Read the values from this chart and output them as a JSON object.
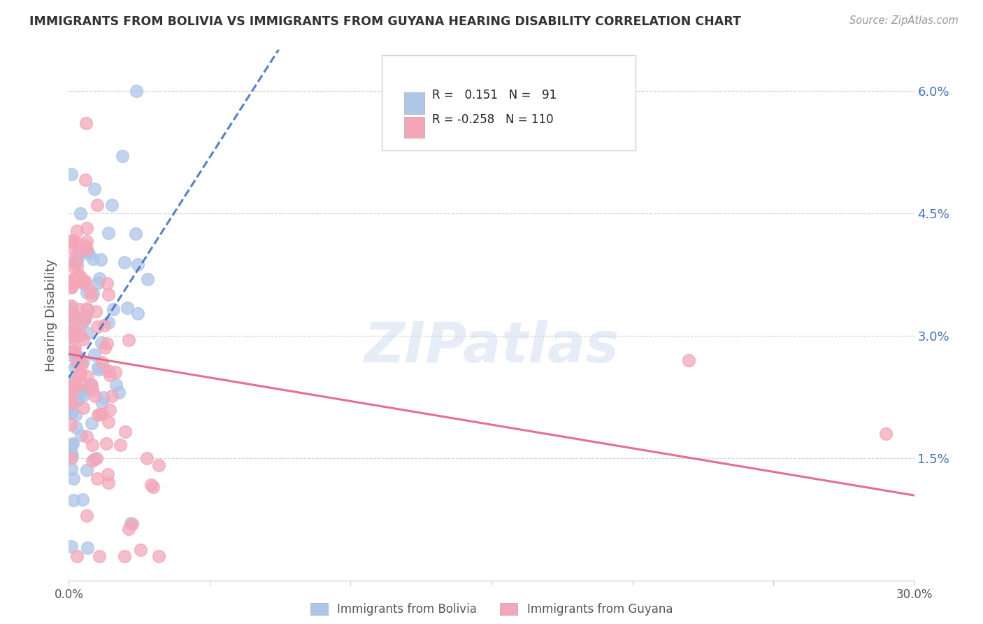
{
  "title": "IMMIGRANTS FROM BOLIVIA VS IMMIGRANTS FROM GUYANA HEARING DISABILITY CORRELATION CHART",
  "source": "Source: ZipAtlas.com",
  "ylabel": "Hearing Disability",
  "xlim": [
    0.0,
    0.3
  ],
  "ylim": [
    0.0,
    0.065
  ],
  "xtick_vals": [
    0.0,
    0.05,
    0.1,
    0.15,
    0.2,
    0.25,
    0.3
  ],
  "xticklabels": [
    "0.0%",
    "",
    "",
    "",
    "",
    "",
    "30.0%"
  ],
  "ytick_vals": [
    0.0,
    0.015,
    0.03,
    0.045,
    0.06
  ],
  "yticklabels_right": [
    "",
    "1.5%",
    "3.0%",
    "4.5%",
    "6.0%"
  ],
  "bolivia_color": "#aec6e8",
  "guyana_color": "#f4a7b9",
  "bolivia_R": 0.151,
  "bolivia_N": 91,
  "guyana_R": -0.258,
  "guyana_N": 110,
  "bolivia_line_color": "#4472c4",
  "guyana_line_color": "#e06080",
  "legend_label_bolivia": "Immigrants from Bolivia",
  "legend_label_guyana": "Immigrants from Guyana",
  "watermark": "ZIPatlas",
  "background_color": "#ffffff",
  "grid_color": "#cccccc",
  "title_color": "#333333",
  "source_color": "#999999",
  "tick_color": "#555555",
  "ylabel_color": "#555555"
}
